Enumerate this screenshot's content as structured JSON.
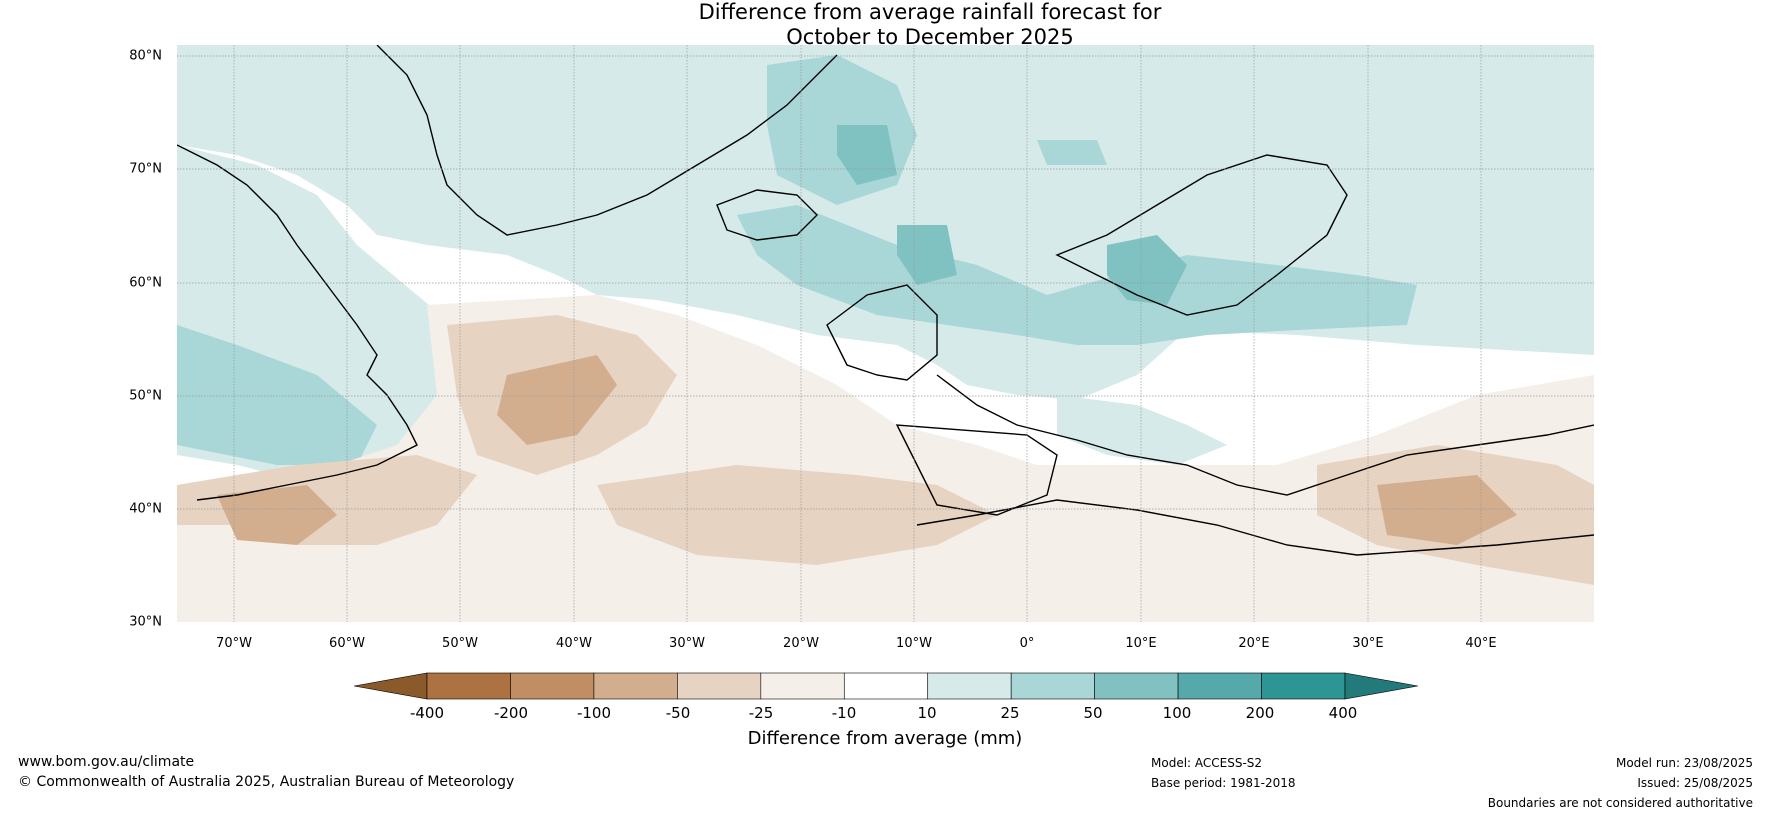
{
  "title": {
    "line1": "Difference from average rainfall forecast for",
    "line2": "October to December 2025"
  },
  "map": {
    "lat_labels": [
      "80°N",
      "70°N",
      "60°N",
      "50°N",
      "40°N",
      "30°N"
    ],
    "lon_labels": [
      "70°W",
      "60°W",
      "50°W",
      "40°W",
      "30°W",
      "20°W",
      "10°W",
      "0°",
      "10°E",
      "20°E",
      "30°E",
      "40°E"
    ],
    "extent": {
      "lon_min": -75,
      "lon_max": 50,
      "lat_min": 30,
      "lat_max": 81
    },
    "colors": {
      "wet_10_25": "#d6eaea",
      "wet_25_50": "#a9d6d6",
      "wet_50_100": "#7fc2c1",
      "wet_100_200": "#56a9ab",
      "dry_10_25": "#f4efe9",
      "dry_25_50": "#e6d3c2",
      "dry_50_100": "#d2ae8e",
      "land_outline": "#000000",
      "borders": "#777777"
    }
  },
  "colorbar": {
    "ticks": [
      "-400",
      "-200",
      "-100",
      "-50",
      "-25",
      "-10",
      "10",
      "25",
      "50",
      "100",
      "200",
      "400"
    ],
    "colors": [
      "#8b5a2b",
      "#ac7242",
      "#c08e63",
      "#d2ae8e",
      "#e6d3c2",
      "#f4efe9",
      "#ffffff",
      "#d6eaea",
      "#a9d6d6",
      "#7fc2c1",
      "#56a9ab",
      "#2e9595",
      "#227a7a"
    ],
    "label": "Difference from average (mm)"
  },
  "footer": {
    "website": "www.bom.gov.au/climate",
    "copyright": "© Commonwealth of Australia 2025, Australian Bureau of Meteorology",
    "model": "Model: ACCESS-S2",
    "base_period": "Base period: 1981-2018",
    "model_run": "Model run: 23/08/2025",
    "issued": "Issued: 25/08/2025",
    "disclaimer": "Boundaries are not considered authoritative"
  }
}
